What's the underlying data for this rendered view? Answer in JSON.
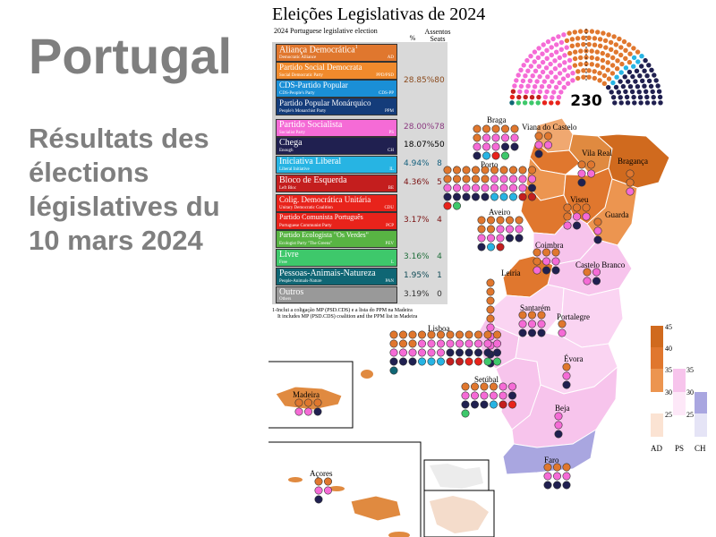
{
  "slide": {
    "title": "Portugal",
    "subtitle_lines": [
      "Résultats des",
      "élections",
      "législatives du",
      "10 mars 2024"
    ]
  },
  "figure": {
    "title": "Eleições Legislativas de 2024",
    "subtitle": "2024 Portuguese legislative election",
    "col_pct": "%",
    "col_seats_1": "Assentos",
    "col_seats_2": "Seats",
    "total_seats": "230",
    "footnote_1": "1-Inclui a coligação MP (PSD.CDS) e a lista do PPM na Madeira",
    "footnote_2": "It includes MP (PSD.CDS) coalition and the PPM list in Madeira"
  },
  "colors": {
    "ad": "#e0772e",
    "ps": "#f56bd6",
    "ch": "#202050",
    "il": "#27b4e3",
    "be": "#c41e1e",
    "cdu": "#e8231b",
    "livre": "#3ec86b",
    "pan": "#0f6674",
    "others": "#999999"
  },
  "parties": [
    {
      "name": "Aliança Democrática",
      "sup": "1",
      "en": "Democratic Alliance",
      "abbr": "AD",
      "color": "#e0772e"
    },
    {
      "name": "Partido Social Democrata",
      "en": "Social Democratic Party",
      "abbr": "PPD/PSD",
      "color": "#f08a2c"
    },
    {
      "name": "CDS-Partido Popular",
      "en": "CDS-People's Party",
      "abbr": "CDS-PP",
      "color": "#1a8fd6"
    },
    {
      "name": "Partido Popular Monárquico",
      "en": "People's Monarchist Party",
      "abbr": "PPM",
      "color": "#143c7a"
    },
    {
      "name": "Partido Socialista",
      "en": "Socialist Party",
      "abbr": "PS",
      "color": "#f56bd6"
    },
    {
      "name": "Chega",
      "en": "Enough",
      "abbr": "CH",
      "color": "#202050"
    },
    {
      "name": "Iniciativa Liberal",
      "en": "Liberal Initiative",
      "abbr": "IL",
      "color": "#27b4e3"
    },
    {
      "name": "Bloco de Esquerda",
      "en": "Left Bloc",
      "abbr": "BE",
      "color": "#c41e1e"
    },
    {
      "name": "Colig. Democrática Unitária",
      "en": "Unitary Democratic Coalition",
      "abbr": "CDU",
      "color": "#e8231b"
    },
    {
      "name": "Partido Comunista Português",
      "en": "Portuguese Communist Party",
      "abbr": "PCP",
      "color": "#e8231b"
    },
    {
      "name": "Partido Ecologista \"Os Verdes\"",
      "en": "Ecologist Party \"The Greens\"",
      "abbr": "PEV",
      "color": "#58b443"
    },
    {
      "name": "Livre",
      "en": "Free",
      "abbr": "L",
      "color": "#3ec86b"
    },
    {
      "name": "Pessoas-Animais-Natureza",
      "en": "People-Animals-Nature",
      "abbr": "PAN",
      "color": "#0f6674"
    },
    {
      "name": "Outros",
      "en": "Others",
      "abbr": "",
      "color": "#999999"
    }
  ],
  "results": [
    {
      "pct": "28.85%",
      "seats": "80",
      "color": "#8b4a1c"
    },
    {
      "pct": "28.00%",
      "seats": "78",
      "color": "#8b3a80"
    },
    {
      "pct": "18.07%",
      "seats": "50",
      "color": "#000000"
    },
    {
      "pct": "4.94%",
      "seats": "8",
      "color": "#14607e"
    },
    {
      "pct": "4.36%",
      "seats": "5",
      "color": "#7a1010"
    },
    {
      "pct": "3.17%",
      "seats": "4",
      "color": "#7a1010"
    },
    {
      "pct": "3.16%",
      "seats": "4",
      "color": "#1f6e3a"
    },
    {
      "pct": "1.95%",
      "seats": "1",
      "color": "#0f4a55"
    },
    {
      "pct": "3.19%",
      "seats": "0",
      "color": "#333333"
    }
  ],
  "parliament": {
    "ad": 80,
    "ps": 78,
    "ch": 50,
    "il": 8,
    "be": 5,
    "cdu": 4,
    "livre": 4,
    "pan": 1
  },
  "districts": [
    "Braga",
    "Viana do Castelo",
    "Porto",
    "Vila Real",
    "Bragança",
    "Aveiro",
    "Viseu",
    "Guarda",
    "Coimbra",
    "Castelo Branco",
    "Leiria",
    "Santarém",
    "Portalegre",
    "Lisboa",
    "Évora",
    "Setúbal",
    "Beja",
    "Faro",
    "Madeira",
    "Açores"
  ],
  "legend": {
    "ad_ticks": [
      "45",
      "40",
      "35",
      "30",
      "25"
    ],
    "ps_ticks": [
      "35",
      "30",
      "25"
    ],
    "labels": [
      "AD",
      "PS",
      "CH"
    ]
  }
}
